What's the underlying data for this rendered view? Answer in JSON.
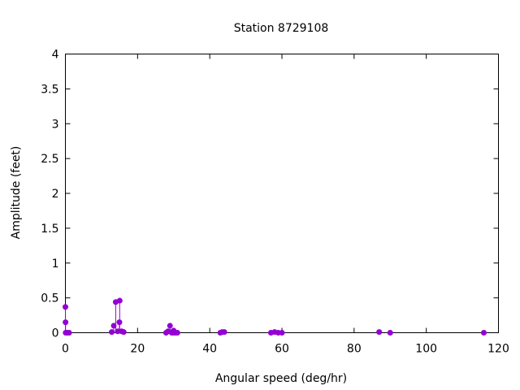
{
  "chart_data": {
    "type": "scatter",
    "style": "impulses with points",
    "title": "Station 8729108",
    "xlabel": "Angular speed (deg/hr)",
    "ylabel": "Amplitude (feet)",
    "xlim": [
      0,
      120
    ],
    "ylim": [
      0,
      4
    ],
    "xticks": [
      "0",
      "20",
      "40",
      "60",
      "80",
      "100",
      "120"
    ],
    "yticks": [
      "0",
      "0.5",
      "1",
      "1.5",
      "2",
      "2.5",
      "3",
      "3.5",
      "4"
    ],
    "grid": false,
    "color": "#9400d3",
    "x": [
      0,
      0.04,
      0.08,
      0.54,
      1.02,
      12.85,
      13.4,
      13.94,
      14.49,
      14.96,
      15.04,
      15.59,
      16.14,
      27.9,
      28.44,
      28.98,
      29.46,
      29.53,
      29.96,
      30.0,
      30.08,
      30.54,
      31.02,
      42.93,
      43.48,
      44.03,
      56.95,
      57.97,
      58.98,
      60.0,
      86.95,
      90.0,
      115.94
    ],
    "y": [
      0.37,
      0.15,
      0.0,
      0.0,
      0.0,
      0.01,
      0.1,
      0.44,
      0.02,
      0.15,
      0.46,
      0.02,
      0.01,
      0.0,
      0.02,
      0.1,
      0.0,
      0.01,
      0.0,
      0.03,
      0.01,
      0.0,
      0.0,
      0.0,
      0.01,
      0.01,
      0.0,
      0.01,
      0.0,
      0.0,
      0.01,
      0.0,
      0.0
    ]
  }
}
